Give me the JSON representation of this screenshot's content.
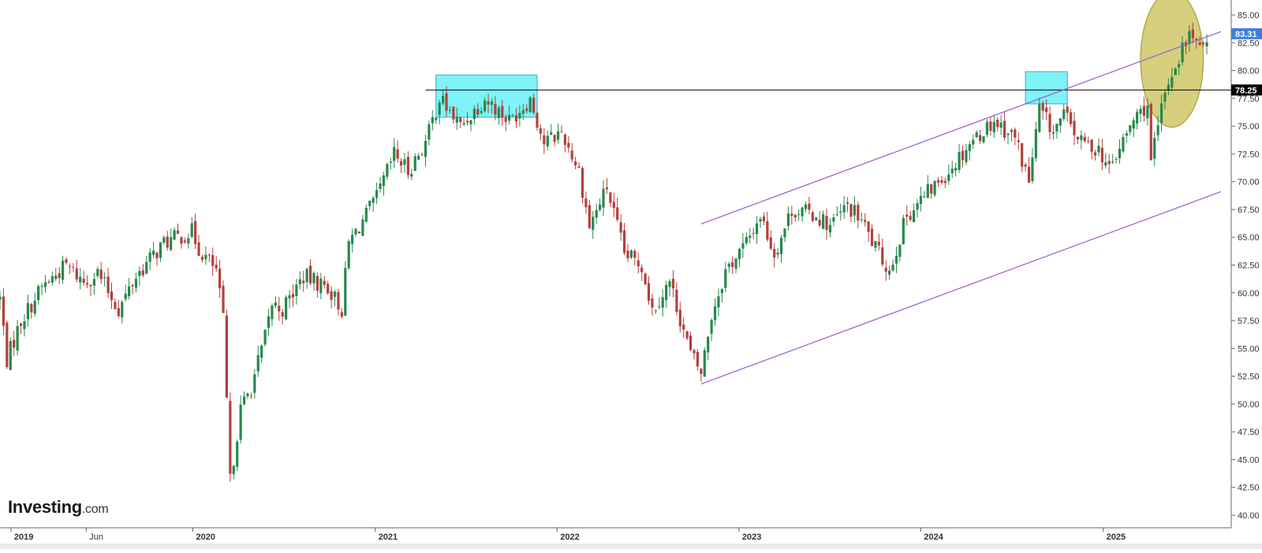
{
  "brand": {
    "name": "Investing",
    "suffix": ".com"
  },
  "colors": {
    "up": "#26894e",
    "down": "#b4403c",
    "channel": "#9b59d0",
    "resistance": "#000000",
    "box_fill": "#5ff0f5",
    "box_stroke": "#3aa8c8",
    "circle_fill": "#c9c25a",
    "circle_stroke": "#a8a030",
    "last_price_bg": "#3d7fe0",
    "level_bg": "#000000",
    "axis": "#666666"
  },
  "chart_data": {
    "type": "candlestick",
    "y_axis": {
      "min": 40,
      "max": 85,
      "step": 2.5,
      "ticks": [
        "85.00",
        "82.50",
        "80.00",
        "77.50",
        "75.00",
        "72.50",
        "70.00",
        "67.50",
        "65.00",
        "62.50",
        "60.00",
        "57.50",
        "55.00",
        "52.50",
        "50.00",
        "47.50",
        "45.00",
        "42.50",
        "40.00"
      ]
    },
    "x_axis": {
      "labels": [
        {
          "text": "2019",
          "date": "2019-01-01"
        },
        {
          "text": "Jun",
          "date": "2019-06-01"
        },
        {
          "text": "2020",
          "date": "2020-01-01"
        },
        {
          "text": "2021",
          "date": "2021-01-01"
        },
        {
          "text": "2022",
          "date": "2022-01-01"
        },
        {
          "text": "2023",
          "date": "2023-01-01"
        },
        {
          "text": "2024",
          "date": "2024-01-01"
        },
        {
          "text": "2025",
          "date": "2025-01-01"
        }
      ],
      "start": "2018-12-10",
      "end": "2025-09-15"
    },
    "last_price": {
      "label": "83.31",
      "value": 83.31
    },
    "resistance_level": {
      "label": "78.25",
      "value": 78.25,
      "from": "2021-04-12"
    },
    "channel": {
      "upper": {
        "p1": {
          "date": "2022-10-17",
          "value": 66.2
        },
        "p2": {
          "date": "2025-08-25",
          "value": 83.5
        }
      },
      "lower": {
        "p1": {
          "date": "2022-10-17",
          "value": 51.8
        },
        "p2": {
          "date": "2025-08-25",
          "value": 69.1
        }
      }
    },
    "highlight_boxes": [
      {
        "from": "2021-05-03",
        "to": "2021-11-22",
        "low": 75.8,
        "high": 79.6
      },
      {
        "from": "2024-07-29",
        "to": "2024-10-21",
        "low": 77.0,
        "high": 79.9
      }
    ],
    "highlight_circle": {
      "center_date": "2025-05-19",
      "center_value": 81.0,
      "x_radius_days": 63,
      "y_radius": 6.1
    },
    "anchors": [
      [
        "2018-12-10",
        59.5
      ],
      [
        "2018-12-24",
        54.0
      ],
      [
        "2019-01-21",
        57.5
      ],
      [
        "2019-03-04",
        60.5
      ],
      [
        "2019-04-22",
        62.5
      ],
      [
        "2019-05-27",
        61.0
      ],
      [
        "2019-06-24",
        61.8
      ],
      [
        "2019-08-05",
        58.5
      ],
      [
        "2019-09-09",
        61.5
      ],
      [
        "2019-11-04",
        64.5
      ],
      [
        "2019-12-30",
        65.5
      ],
      [
        "2020-01-13",
        64.0
      ],
      [
        "2020-02-17",
        62.0
      ],
      [
        "2020-03-02",
        57.5
      ],
      [
        "2020-03-16",
        43.0
      ],
      [
        "2020-04-06",
        49.5
      ],
      [
        "2020-04-27",
        51.5
      ],
      [
        "2020-05-25",
        56.0
      ],
      [
        "2020-06-08",
        59.0
      ],
      [
        "2020-06-29",
        58.5
      ],
      [
        "2020-08-10",
        61.5
      ],
      [
        "2020-09-28",
        60.5
      ],
      [
        "2020-10-26",
        58.5
      ],
      [
        "2020-11-09",
        64.5
      ],
      [
        "2021-01-04",
        68.5
      ],
      [
        "2021-02-08",
        72.5
      ],
      [
        "2021-03-08",
        71.0
      ],
      [
        "2021-04-12",
        73.5
      ],
      [
        "2021-05-10",
        77.5
      ],
      [
        "2021-06-21",
        75.0
      ],
      [
        "2021-08-09",
        77.5
      ],
      [
        "2021-09-27",
        75.5
      ],
      [
        "2021-11-08",
        77.5
      ],
      [
        "2021-12-06",
        73.5
      ],
      [
        "2022-01-10",
        74.5
      ],
      [
        "2022-02-14",
        71.0
      ],
      [
        "2022-03-07",
        66.0
      ],
      [
        "2022-04-11",
        69.5
      ],
      [
        "2022-05-16",
        63.5
      ],
      [
        "2022-06-20",
        62.5
      ],
      [
        "2022-07-11",
        58.5
      ],
      [
        "2022-08-15",
        61.0
      ],
      [
        "2022-09-26",
        54.5
      ],
      [
        "2022-10-17",
        52.8
      ],
      [
        "2022-11-07",
        58.0
      ],
      [
        "2022-12-05",
        62.0
      ],
      [
        "2023-01-16",
        64.5
      ],
      [
        "2023-02-13",
        67.0
      ],
      [
        "2023-03-13",
        63.5
      ],
      [
        "2023-04-17",
        67.5
      ],
      [
        "2023-06-05",
        67.0
      ],
      [
        "2023-07-03",
        66.0
      ],
      [
        "2023-08-07",
        67.8
      ],
      [
        "2023-09-04",
        66.5
      ],
      [
        "2023-10-02",
        64.0
      ],
      [
        "2023-10-30",
        62.0
      ],
      [
        "2023-12-04",
        67.0
      ],
      [
        "2024-01-15",
        69.0
      ],
      [
        "2024-02-26",
        71.0
      ],
      [
        "2024-04-08",
        73.5
      ],
      [
        "2024-05-27",
        75.5
      ],
      [
        "2024-07-08",
        74.0
      ],
      [
        "2024-08-05",
        70.0
      ],
      [
        "2024-08-26",
        76.5
      ],
      [
        "2024-09-23",
        74.5
      ],
      [
        "2024-10-14",
        76.0
      ],
      [
        "2024-11-18",
        73.5
      ],
      [
        "2024-12-23",
        73.0
      ],
      [
        "2025-01-13",
        71.0
      ],
      [
        "2025-02-03",
        73.0
      ],
      [
        "2025-03-03",
        75.5
      ],
      [
        "2025-03-31",
        77.0
      ],
      [
        "2025-04-07",
        71.5
      ],
      [
        "2025-04-28",
        76.5
      ],
      [
        "2025-05-12",
        79.0
      ],
      [
        "2025-06-09",
        82.0
      ],
      [
        "2025-06-30",
        83.5
      ],
      [
        "2025-07-14",
        81.5
      ],
      [
        "2025-07-28",
        83.31
      ]
    ]
  }
}
